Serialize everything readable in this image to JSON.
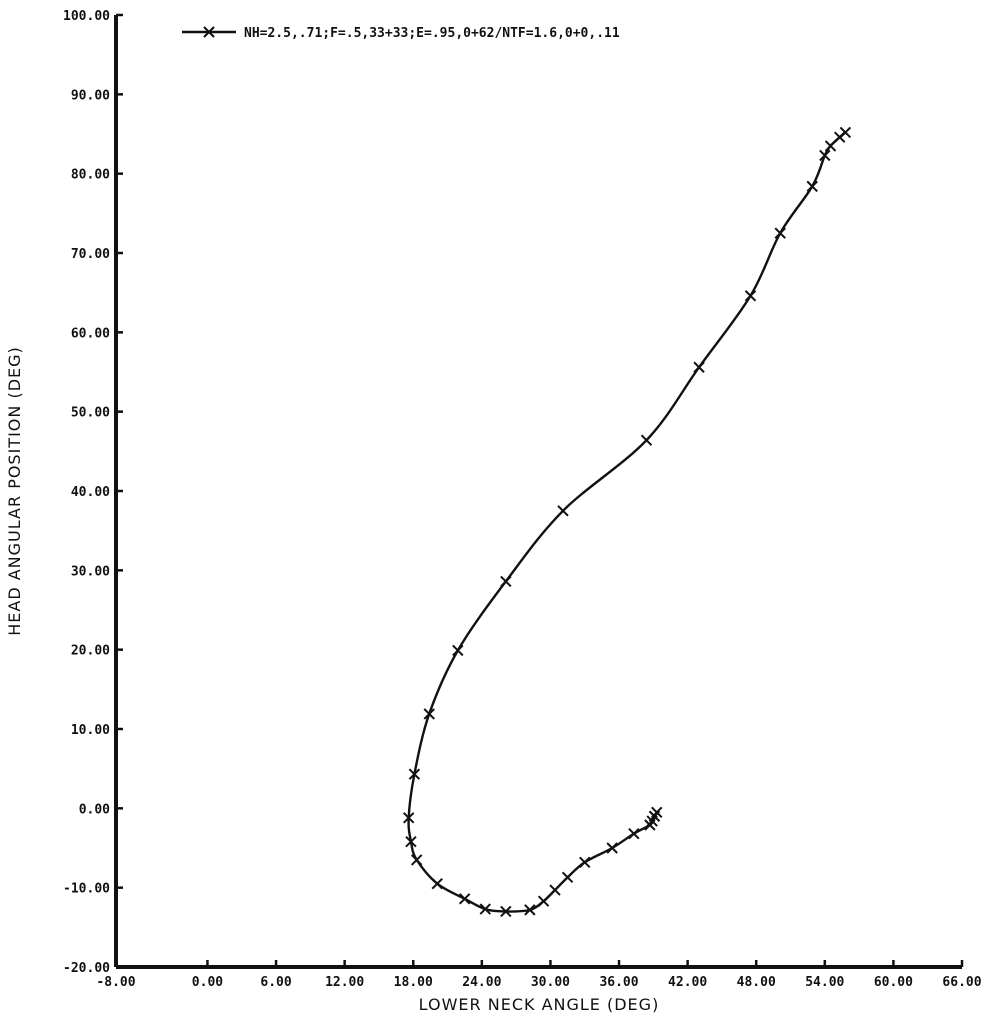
{
  "chart_data": {
    "type": "line",
    "title": "",
    "xlabel": "LOWER NECK ANGLE (DEG)",
    "ylabel": "HEAD ANGULAR POSITION (DEG)",
    "xlim": [
      -8,
      66
    ],
    "ylim": [
      -20,
      100
    ],
    "x_ticks": [
      -8,
      0,
      6,
      12,
      18,
      24,
      30,
      36,
      42,
      48,
      54,
      60,
      66
    ],
    "x_tick_labels": [
      "-8.00",
      "0.00",
      "6.00",
      "12.00",
      "18.00",
      "24.00",
      "30.00",
      "36.00",
      "42.00",
      "48.00",
      "54.00",
      "60.00",
      "66.00"
    ],
    "y_ticks": [
      -20,
      -10,
      0,
      10,
      20,
      30,
      40,
      50,
      60,
      70,
      80,
      90,
      100
    ],
    "y_tick_labels": [
      "-20.00",
      "-10.00",
      "0.00",
      "10.00",
      "20.00",
      "30.00",
      "40.00",
      "50.00",
      "60.00",
      "70.00",
      "80.00",
      "90.00",
      "100.00"
    ],
    "grid": false,
    "legend": {
      "placement": "top",
      "entries": [
        "NH=2.5,.71;F=.5,33+33;E=.95,0+62/NTF=1.6,0+0,.11"
      ]
    },
    "series": [
      {
        "name": "NH=2.5,.71;F=.5,33+33;E=.95,0+62/NTF=1.6,0+0,.11",
        "marker": "x",
        "x": [
          39.3,
          39.1,
          38.9,
          38.7,
          37.3,
          35.4,
          33.0,
          31.5,
          30.4,
          29.4,
          28.2,
          26.1,
          24.3,
          22.5,
          20.1,
          18.3,
          17.8,
          17.6,
          18.1,
          19.4,
          21.9,
          26.1,
          31.1,
          38.4,
          43.0,
          47.5,
          50.1,
          52.9,
          54.0,
          54.5,
          55.3,
          55.8
        ],
        "y": [
          -0.5,
          -1.0,
          -1.6,
          -2.1,
          -3.2,
          -5.0,
          -6.8,
          -8.7,
          -10.3,
          -11.7,
          -12.8,
          -13.0,
          -12.7,
          -11.4,
          -9.5,
          -6.5,
          -4.2,
          -1.2,
          4.3,
          11.9,
          19.9,
          28.6,
          37.5,
          46.4,
          55.6,
          64.6,
          72.5,
          78.4,
          82.3,
          83.5,
          84.6,
          85.2
        ]
      }
    ]
  }
}
